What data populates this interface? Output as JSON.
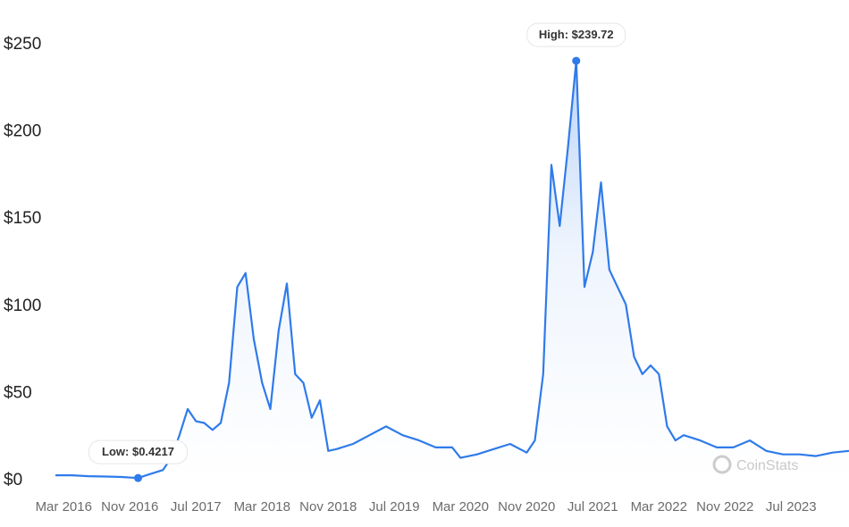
{
  "chart_data": {
    "type": "area",
    "y_tick_labels": [
      "$0",
      "$50",
      "$100",
      "$150",
      "$200",
      "$250"
    ],
    "y_tick_values": [
      0,
      50,
      100,
      150,
      200,
      250
    ],
    "x_tick_labels": [
      "Mar 2016",
      "Nov 2016",
      "Jul 2017",
      "Mar 2018",
      "Nov 2018",
      "Jul 2019",
      "Mar 2020",
      "Nov 2020",
      "Jul 2021",
      "Mar 2022",
      "Nov 2022",
      "Jul 2023"
    ],
    "x_tick_values": [
      "2016-03",
      "2016-11",
      "2017-07",
      "2018-03",
      "2018-11",
      "2019-07",
      "2020-03",
      "2020-11",
      "2021-07",
      "2022-03",
      "2022-11",
      "2023-07"
    ],
    "ylim": [
      0,
      250
    ],
    "xlim": [
      "2016-02",
      "2024-02"
    ],
    "grid": false,
    "color": "#2f7bea",
    "high": {
      "label": "High: $239.72",
      "date": "2021-05",
      "value": 239.72
    },
    "low": {
      "label": "Low: $0.4217",
      "date": "2016-12",
      "value": 0.4217
    },
    "series": [
      {
        "x": [
          "2016-02",
          "2016-04",
          "2016-06",
          "2016-08",
          "2016-10",
          "2016-12",
          "2017-01",
          "2017-03",
          "2017-04",
          "2017-05",
          "2017-06",
          "2017-07",
          "2017-08",
          "2017-09",
          "2017-10",
          "2017-11",
          "2017-12",
          "2018-01",
          "2018-02",
          "2018-03",
          "2018-04",
          "2018-05",
          "2018-06",
          "2018-07",
          "2018-08",
          "2018-09",
          "2018-10",
          "2018-11",
          "2018-12",
          "2019-02",
          "2019-04",
          "2019-06",
          "2019-08",
          "2019-10",
          "2019-12",
          "2020-02",
          "2020-03",
          "2020-05",
          "2020-07",
          "2020-09",
          "2020-11",
          "2020-12",
          "2021-01",
          "2021-02",
          "2021-03",
          "2021-04",
          "2021-05",
          "2021-06",
          "2021-07",
          "2021-08",
          "2021-09",
          "2021-10",
          "2021-11",
          "2021-12",
          "2022-01",
          "2022-02",
          "2022-03",
          "2022-04",
          "2022-05",
          "2022-06",
          "2022-08",
          "2022-10",
          "2022-12",
          "2023-02",
          "2023-04",
          "2023-06",
          "2023-08",
          "2023-10",
          "2023-12",
          "2024-02"
        ],
        "y": [
          2,
          2,
          1.5,
          1.3,
          1,
          0.42,
          2,
          5,
          12,
          25,
          40,
          33,
          32,
          28,
          32,
          55,
          110,
          118,
          80,
          55,
          40,
          85,
          112,
          60,
          55,
          35,
          45,
          16,
          17,
          20,
          25,
          30,
          25,
          22,
          18,
          18,
          12,
          14,
          17,
          20,
          15,
          22,
          60,
          180,
          145,
          190,
          239.72,
          110,
          130,
          170,
          120,
          110,
          100,
          70,
          60,
          65,
          60,
          30,
          22,
          25,
          22,
          18,
          18,
          22,
          16,
          14,
          14,
          13,
          15,
          16
        ]
      }
    ],
    "watermark": "CoinStats"
  }
}
